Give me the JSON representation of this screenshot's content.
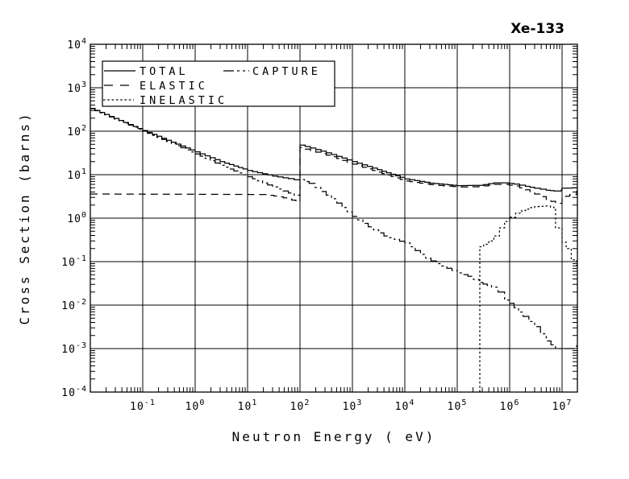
{
  "title": "Xe-133",
  "colors": {
    "foreground": "#000000",
    "background": "#ffffff"
  },
  "axes": {
    "x": {
      "title": "Neutron Energy ( eV)",
      "scale": "log",
      "range": [
        0.01,
        20000000.0
      ],
      "tick_exponents": [
        -1,
        0,
        1,
        2,
        3,
        4,
        5,
        6,
        7
      ]
    },
    "y": {
      "title": "Cross Section (barns)",
      "scale": "log",
      "range": [
        0.0001,
        10000
      ],
      "tick_exponents": [
        4,
        3,
        2,
        1,
        0,
        -1,
        -2,
        -3,
        -4
      ]
    }
  },
  "legend": {
    "items": [
      {
        "label": "TOTAL",
        "style": "solid"
      },
      {
        "label": "ELASTIC",
        "style": "dash"
      },
      {
        "label": "INELASTIC",
        "style": "dot"
      },
      {
        "label": "CAPTURE",
        "style": "dashdot"
      }
    ]
  },
  "chart_data": {
    "type": "line",
    "title": "Xe-133",
    "xlabel": "Neutron Energy ( eV)",
    "ylabel": "Cross Section (barns)",
    "xscale": "log",
    "yscale": "log",
    "xlim": [
      0.01,
      20000000.0
    ],
    "ylim": [
      0.0001,
      10000
    ],
    "grid": true,
    "legend_position": "top-left-inside",
    "line_interpolation": "steps",
    "series": [
      {
        "name": "TOTAL",
        "style": "solid",
        "points": [
          [
            0.01,
            335
          ],
          [
            0.1,
            104
          ],
          [
            1,
            33.5
          ],
          [
            3,
            20
          ],
          [
            10,
            12.5
          ],
          [
            30,
            9.3
          ],
          [
            60,
            8.1
          ],
          [
            100,
            7.2
          ],
          [
            100,
            48
          ],
          [
            200,
            38
          ],
          [
            400,
            29
          ],
          [
            1000,
            20
          ],
          [
            3000,
            13
          ],
          [
            10000.0,
            8.0
          ],
          [
            30000.0,
            6.4
          ],
          [
            100000.0,
            5.6
          ],
          [
            250000.0,
            5.7
          ],
          [
            500000.0,
            6.5
          ],
          [
            800000.0,
            6.5
          ],
          [
            1200000.0,
            6.1
          ],
          [
            2000000.0,
            5.4
          ],
          [
            3000000.0,
            4.9
          ],
          [
            5000000.0,
            4.4
          ],
          [
            7000000.0,
            4.2
          ],
          [
            9500000.0,
            4.2
          ],
          [
            10000000.0,
            4.9
          ],
          [
            19000000.0,
            5.0
          ]
        ]
      },
      {
        "name": "ELASTIC",
        "style": "dash",
        "points": [
          [
            0.01,
            3.6
          ],
          [
            20,
            3.5
          ],
          [
            40,
            3.1
          ],
          [
            70,
            2.6
          ],
          [
            100,
            2.4
          ],
          [
            100,
            42
          ],
          [
            200,
            33
          ],
          [
            400,
            26
          ],
          [
            1000,
            17.5
          ],
          [
            3000,
            11.5
          ],
          [
            10000.0,
            7.2
          ],
          [
            30000.0,
            5.9
          ],
          [
            100000.0,
            5.2
          ],
          [
            250000.0,
            5.3
          ],
          [
            500000.0,
            6.0
          ],
          [
            800000.0,
            6.0
          ],
          [
            1200000.0,
            5.5
          ],
          [
            2000000.0,
            4.5
          ],
          [
            3000000.0,
            3.6
          ],
          [
            5000000.0,
            2.7
          ],
          [
            7500000.0,
            2.2
          ],
          [
            10000000.0,
            2.9
          ],
          [
            14000000.0,
            3.5
          ],
          [
            19000000.0,
            4.3
          ]
        ]
      },
      {
        "name": "INELASTIC",
        "style": "dot",
        "points": [
          [
            270000.0,
            0.0001
          ],
          [
            270000.0,
            0.22
          ],
          [
            320000.0,
            0.25
          ],
          [
            400000.0,
            0.3
          ],
          [
            500000.0,
            0.39
          ],
          [
            640000.0,
            0.6
          ],
          [
            800000.0,
            0.84
          ],
          [
            1000000.0,
            1.05
          ],
          [
            1300000.0,
            1.3
          ],
          [
            1700000.0,
            1.5
          ],
          [
            2400000.0,
            1.75
          ],
          [
            3000000.0,
            1.85
          ],
          [
            4500000.0,
            1.9
          ],
          [
            6000000.0,
            1.8
          ],
          [
            7000000.0,
            1.6
          ],
          [
            7500000.0,
            0.6
          ],
          [
            10000000.0,
            0.28
          ],
          [
            12000000.0,
            0.2
          ],
          [
            15000000.0,
            0.11
          ],
          [
            19000000.0,
            0.08
          ]
        ]
      },
      {
        "name": "CAPTURE",
        "style": "dashdot",
        "points": [
          [
            0.01,
            330
          ],
          [
            0.1,
            100
          ],
          [
            1,
            30
          ],
          [
            3,
            16.5
          ],
          [
            10,
            9.0
          ],
          [
            30,
            5.2
          ],
          [
            60,
            3.8
          ],
          [
            100,
            3.0
          ],
          [
            100,
            7.7
          ],
          [
            150,
            6.3
          ],
          [
            250,
            4.1
          ],
          [
            400,
            2.8
          ],
          [
            1000,
            1.1
          ],
          [
            2000,
            0.63
          ],
          [
            4000,
            0.39
          ],
          [
            10000.0,
            0.27
          ],
          [
            25000.0,
            0.12
          ],
          [
            40000.0,
            0.09
          ],
          [
            100000.0,
            0.055
          ],
          [
            160000.0,
            0.046
          ],
          [
            260000.0,
            0.033
          ],
          [
            450000.0,
            0.026
          ],
          [
            600000.0,
            0.02
          ],
          [
            800000.0,
            0.013
          ],
          [
            1000000.0,
            0.011
          ],
          [
            1800000.0,
            0.0055
          ],
          [
            3000000.0,
            0.0032
          ],
          [
            5000000.0,
            0.0015
          ],
          [
            7500000.0,
            0.001
          ],
          [
            14000000.0,
            0.001
          ],
          [
            19000000.0,
            0.0012
          ]
        ]
      }
    ]
  }
}
